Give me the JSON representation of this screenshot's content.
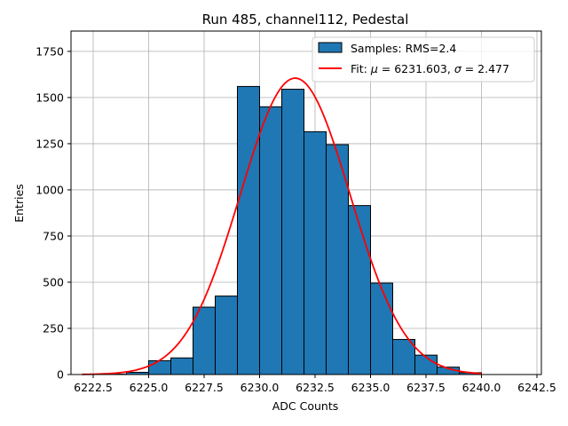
{
  "chart_data": {
    "type": "bar",
    "title": "Run 485, channel112, Pedestal",
    "xlabel": "ADC Counts",
    "ylabel": "Entries",
    "xlim": [
      6221.5,
      6242.7
    ],
    "ylim": [
      0,
      1860
    ],
    "grid": true,
    "legend_position": "top-right",
    "bar_color": "#1f77b4",
    "fit_color": "#ff0000",
    "xticks": [
      6222.5,
      6225.0,
      6227.5,
      6230.0,
      6232.5,
      6235.0,
      6237.5,
      6240.0,
      6242.5
    ],
    "xtick_labels": [
      "6222.5",
      "6225.0",
      "6227.5",
      "6230.0",
      "6232.5",
      "6235.0",
      "6237.5",
      "6240.0",
      "6242.5"
    ],
    "yticks": [
      0,
      250,
      500,
      750,
      1000,
      1250,
      1500,
      1750
    ],
    "ytick_labels": [
      "0",
      "250",
      "500",
      "750",
      "1000",
      "1250",
      "1500",
      "1750"
    ],
    "bins": [
      {
        "x0": 6223,
        "x1": 6224,
        "value": 2
      },
      {
        "x0": 6224,
        "x1": 6225,
        "value": 12
      },
      {
        "x0": 6225,
        "x1": 6226,
        "value": 75
      },
      {
        "x0": 6226,
        "x1": 6227,
        "value": 90
      },
      {
        "x0": 6227,
        "x1": 6228,
        "value": 365
      },
      {
        "x0": 6228,
        "x1": 6229,
        "value": 425
      },
      {
        "x0": 6229,
        "x1": 6230,
        "value": 1560
      },
      {
        "x0": 6230,
        "x1": 6231,
        "value": 1450
      },
      {
        "x0": 6231,
        "x1": 6232,
        "value": 1545
      },
      {
        "x0": 6232,
        "x1": 6233,
        "value": 1315
      },
      {
        "x0": 6233,
        "x1": 6234,
        "value": 1245
      },
      {
        "x0": 6234,
        "x1": 6235,
        "value": 915
      },
      {
        "x0": 6235,
        "x1": 6236,
        "value": 495
      },
      {
        "x0": 6236,
        "x1": 6237,
        "value": 190
      },
      {
        "x0": 6237,
        "x1": 6238,
        "value": 105
      },
      {
        "x0": 6238,
        "x1": 6239,
        "value": 40
      },
      {
        "x0": 6239,
        "x1": 6240,
        "value": 10
      }
    ],
    "fit": {
      "mu": 6231.603,
      "sigma": 2.477,
      "amplitude": 1605,
      "x_range": [
        6222.0,
        6240.0
      ]
    },
    "legend": {
      "samples_label": "Samples: RMS=2.4",
      "fit_prefix": "Fit: ",
      "fit_mu_symbol": "μ",
      "fit_mu_text": " = 6231.603, ",
      "fit_sigma_symbol": "σ",
      "fit_sigma_text": " = 2.477"
    }
  }
}
